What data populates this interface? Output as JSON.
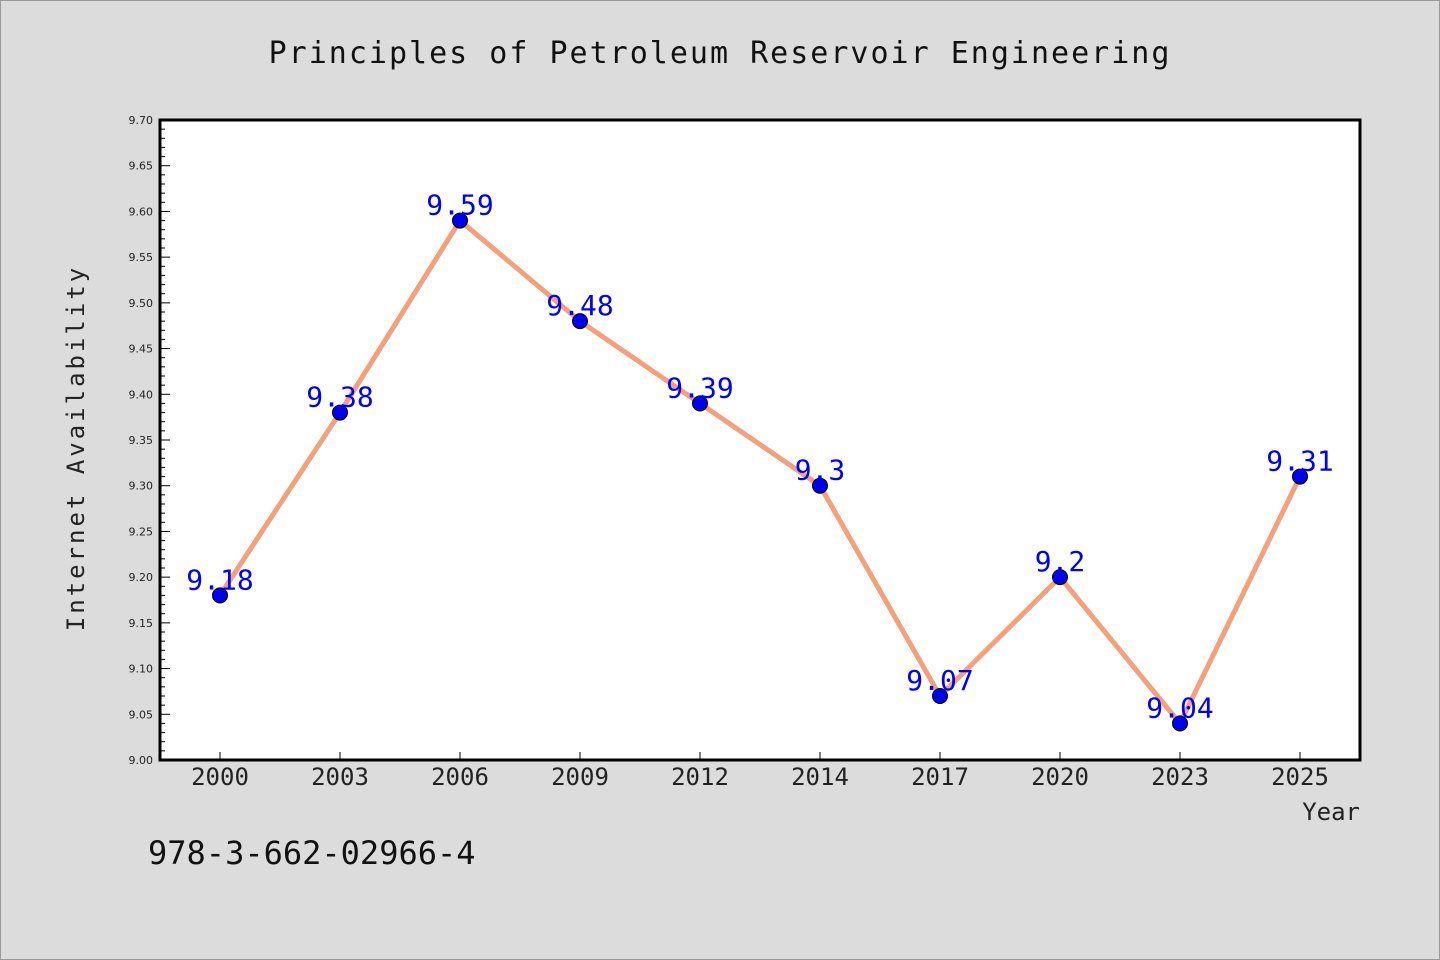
{
  "colors": {
    "background": "#dcdcdc",
    "plot_background": "#ffffff",
    "line": "#f4a07a",
    "marker": "#0000ee",
    "data_label": "#0000ff"
  },
  "footer": {
    "isbn": "978-3-662-02966-4"
  },
  "chart_data": {
    "type": "line",
    "title": "Principles of Petroleum Reservoir Engineering",
    "xlabel": "Year",
    "ylabel": "Internet Availability",
    "categories": [
      "2000",
      "2003",
      "2006",
      "2009",
      "2012",
      "2014",
      "2017",
      "2020",
      "2023",
      "2025"
    ],
    "series": [
      {
        "values": [
          9.18,
          9.38,
          9.59,
          9.48,
          9.39,
          9.3,
          9.07,
          9.2,
          9.04,
          9.31
        ]
      }
    ],
    "data_labels": [
      "9.18",
      "9.38",
      "9.59",
      "9.48",
      "9.39",
      "9.3",
      "9.07",
      "9.2",
      "9.04",
      "9.31"
    ],
    "ylim": [
      9.0,
      9.7
    ],
    "yticks": [
      "9.00",
      "9.05",
      "9.10",
      "9.15",
      "9.20",
      "9.25",
      "9.30",
      "9.35",
      "9.40",
      "9.45",
      "9.50",
      "9.55",
      "9.60",
      "9.65",
      "9.70"
    ],
    "grid": false,
    "legend": "none"
  }
}
